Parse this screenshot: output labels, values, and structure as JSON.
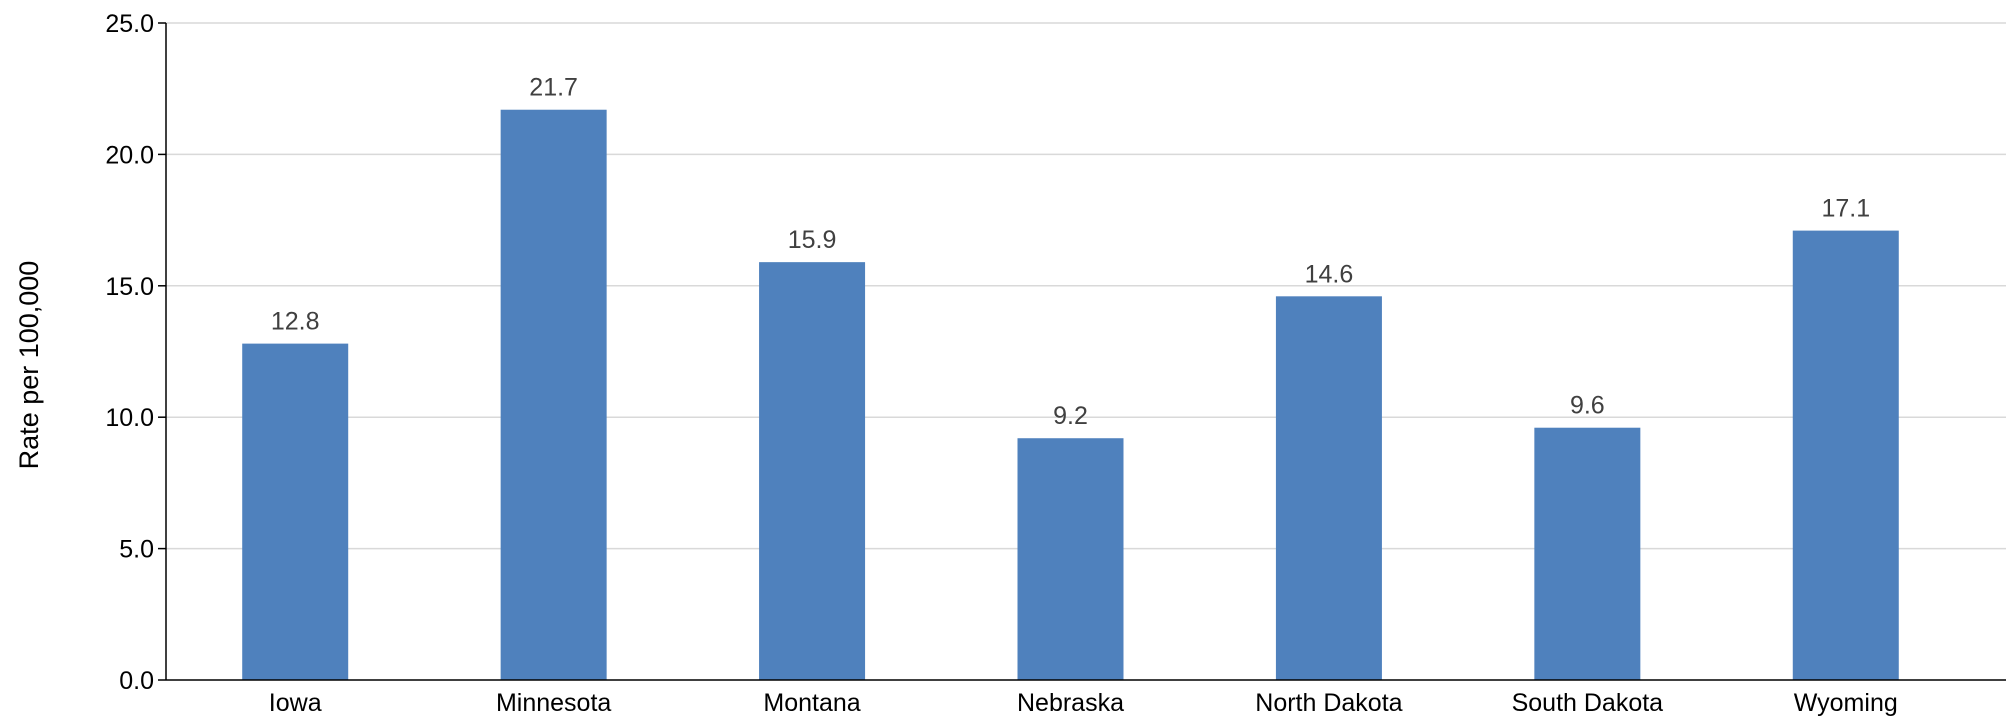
{
  "chart_data": {
    "type": "bar",
    "categories": [
      "Iowa",
      "Minnesota",
      "Montana",
      "Nebraska",
      "North Dakota",
      "South Dakota",
      "Wyoming"
    ],
    "values": [
      12.8,
      21.7,
      15.9,
      9.2,
      14.6,
      9.6,
      17.1
    ],
    "value_labels": [
      "12.8",
      "21.7",
      "15.9",
      "9.2",
      "14.6",
      "9.6",
      "17.1"
    ],
    "ylabel": "Rate per 100,000",
    "ylim": [
      0,
      25
    ],
    "yticks": [
      "0.0",
      "5.0",
      "10.0",
      "15.0",
      "20.0",
      "25.0"
    ],
    "grid": true,
    "bar_color": "#4f81bd",
    "gridline_color": "#d9d9d9",
    "axis_color": "#000000"
  }
}
